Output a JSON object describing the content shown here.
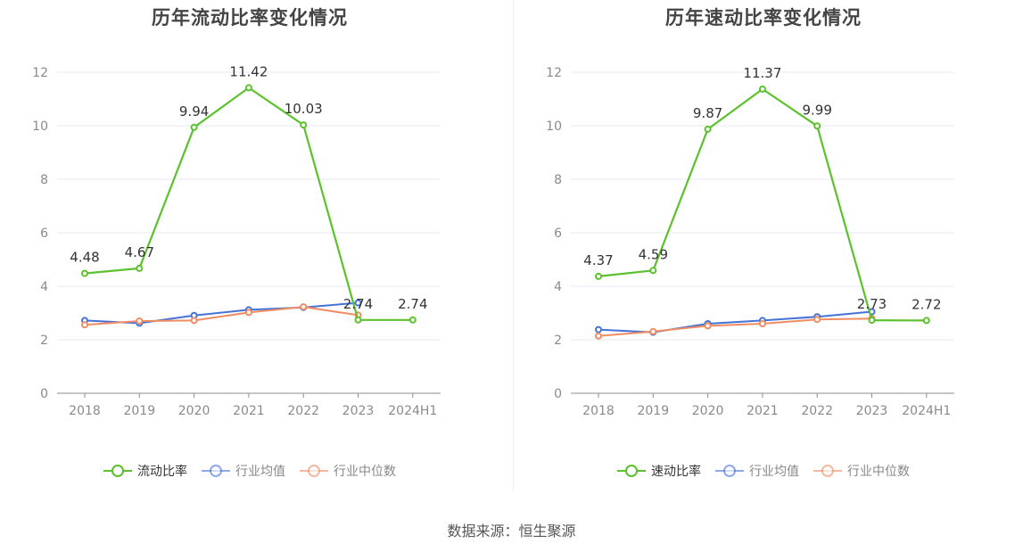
{
  "source": "数据来源：恒生聚源",
  "chart_data": [
    {
      "type": "line",
      "title": "历年流动比率变化情况",
      "categories": [
        "2018",
        "2019",
        "2020",
        "2021",
        "2022",
        "2023",
        "2024H1"
      ],
      "ylim": [
        0,
        12
      ],
      "yticks": [
        0,
        2,
        4,
        6,
        8,
        10,
        12
      ],
      "grid": true,
      "legend_position": "bottom",
      "series": [
        {
          "name": "流动比率",
          "color": "#5bc12c",
          "values": [
            4.48,
            4.67,
            9.94,
            11.42,
            10.03,
            2.74,
            2.74
          ],
          "labels": [
            "4.48",
            "4.67",
            "9.94",
            "11.42",
            "10.03",
            "2.74",
            "2.74"
          ]
        },
        {
          "name": "行业均值",
          "color": "#4472d6",
          "values": [
            2.72,
            2.62,
            2.91,
            3.12,
            3.21,
            3.38,
            null
          ]
        },
        {
          "name": "行业中位数",
          "color": "#f08c62",
          "values": [
            2.56,
            2.7,
            2.72,
            3.02,
            3.23,
            2.92,
            null
          ]
        }
      ]
    },
    {
      "type": "line",
      "title": "历年速动比率变化情况",
      "categories": [
        "2018",
        "2019",
        "2020",
        "2021",
        "2022",
        "2023",
        "2024H1"
      ],
      "ylim": [
        0,
        12
      ],
      "yticks": [
        0,
        2,
        4,
        6,
        8,
        10,
        12
      ],
      "grid": true,
      "legend_position": "bottom",
      "series": [
        {
          "name": "速动比率",
          "color": "#5bc12c",
          "values": [
            4.37,
            4.59,
            9.87,
            11.37,
            9.99,
            2.73,
            2.72
          ],
          "labels": [
            "4.37",
            "4.59",
            "9.87",
            "11.37",
            "9.99",
            "2.73",
            "2.72"
          ]
        },
        {
          "name": "行业均值",
          "color": "#4472d6",
          "values": [
            2.38,
            2.28,
            2.6,
            2.72,
            2.86,
            3.05,
            null
          ]
        },
        {
          "name": "行业中位数",
          "color": "#f08c62",
          "values": [
            2.14,
            2.31,
            2.52,
            2.6,
            2.76,
            2.79,
            null
          ]
        }
      ]
    }
  ]
}
